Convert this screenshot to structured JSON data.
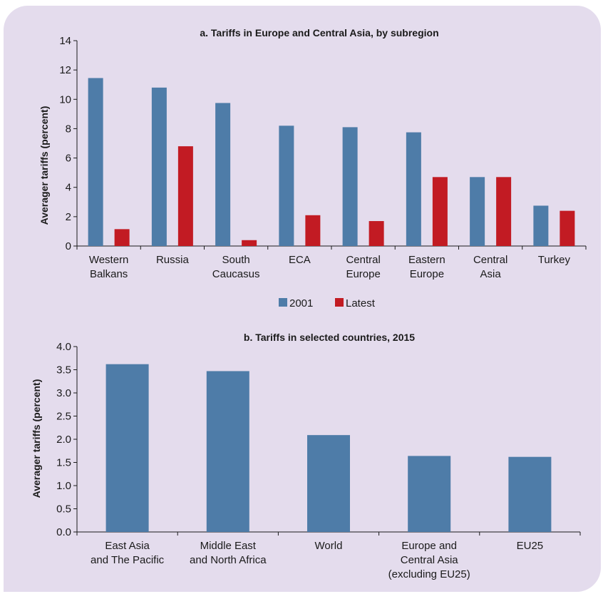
{
  "colors": {
    "panel_bg": "#e4dced",
    "series_2001": "#4e7ca8",
    "series_latest": "#c21b23",
    "axis": "#1a1a1a"
  },
  "chart_data": [
    {
      "type": "bar",
      "title": "a. Tariffs in Europe and Central Asia, by subregion",
      "ylabel": "Averager tariffs (percent)",
      "xlabel": "",
      "ylim": [
        0,
        14
      ],
      "yticks": [
        "0",
        "2",
        "4",
        "6",
        "8",
        "10",
        "12",
        "14"
      ],
      "categories": [
        [
          "Western",
          "Balkans"
        ],
        [
          "Russia"
        ],
        [
          "South",
          "Caucasus"
        ],
        [
          "ECA"
        ],
        [
          "Central",
          "Europe"
        ],
        [
          "Eastern",
          "Europe"
        ],
        [
          "Central",
          "Asia"
        ],
        [
          "Turkey"
        ]
      ],
      "series": [
        {
          "name": "2001",
          "values": [
            11.45,
            10.8,
            9.75,
            8.2,
            8.1,
            7.75,
            4.7,
            2.75
          ]
        },
        {
          "name": "Latest",
          "values": [
            1.15,
            6.8,
            0.4,
            2.1,
            1.7,
            4.7,
            4.7,
            2.4
          ]
        }
      ],
      "legend": "bottom-center",
      "grid": false
    },
    {
      "type": "bar",
      "title": "b. Tariffs in selected countries, 2015",
      "ylabel": "Averager tariffs (percent)",
      "xlabel": "",
      "ylim": [
        0,
        4.0
      ],
      "yticks": [
        "0.0",
        "0.5",
        "1.0",
        "1.5",
        "2.0",
        "2.5",
        "3.0",
        "3.5",
        "4.0"
      ],
      "categories": [
        [
          "East Asia",
          "and The Pacific"
        ],
        [
          "Middle East",
          "and North Africa"
        ],
        [
          "World"
        ],
        [
          "Europe and",
          "Central Asia",
          "(excluding EU25)"
        ],
        [
          "EU25"
        ]
      ],
      "series": [
        {
          "values": [
            3.62,
            3.47,
            2.09,
            1.64,
            1.62
          ]
        }
      ],
      "grid": false
    }
  ]
}
